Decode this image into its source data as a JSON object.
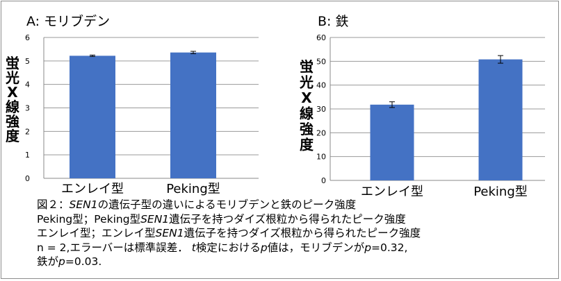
{
  "chart_data": [
    {
      "type": "bar",
      "title": "A: モリブデン",
      "ylabel": "蛍光X線強度",
      "categories": [
        "エンレイ型",
        "Peking型"
      ],
      "values": [
        5.22,
        5.36
      ],
      "errors": [
        0.03,
        0.05
      ],
      "ylim": [
        0,
        6
      ],
      "yticks": [
        "0",
        "1",
        "2",
        "3",
        "4",
        "5",
        "6"
      ],
      "grid": true,
      "bar_color": "#4472c4"
    },
    {
      "type": "bar",
      "title": "B: 鉄",
      "ylabel": "蛍光X線強度",
      "categories": [
        "エンレイ型",
        "Peking型"
      ],
      "values": [
        31.8,
        50.8
      ],
      "errors": [
        1.2,
        1.6
      ],
      "ylim": [
        0,
        60
      ],
      "yticks": [
        "0",
        "10",
        "20",
        "30",
        "40",
        "50",
        "60"
      ],
      "grid": true,
      "bar_color": "#4472c4"
    }
  ],
  "caption": {
    "line1": {
      "pre": "図２：",
      "gene": "SEN1",
      "post": "の遺伝子型の違いによるモリブデンと鉄のピーク強度"
    },
    "line2": {
      "pre": "Peking型；Peking型",
      "gene": "SEN1",
      "post": "遺伝子を持つダイズ根粒から得られたピーク強度"
    },
    "line3": {
      "pre": "エンレイ型；エンレイ型",
      "gene": "SEN1",
      "post": "遺伝子を持つダイズ根粒から得られたピーク強度"
    },
    "line4": {
      "a": "n = 2,エラーバーは標準誤差． ",
      "t": "t",
      "b": "検定における",
      "p1": "p",
      "c": "値は，モリブデンが",
      "p2": "p",
      "d": "=0.32,"
    },
    "line5": {
      "a": "鉄が",
      "p": "p",
      "b": "=0.03."
    }
  }
}
